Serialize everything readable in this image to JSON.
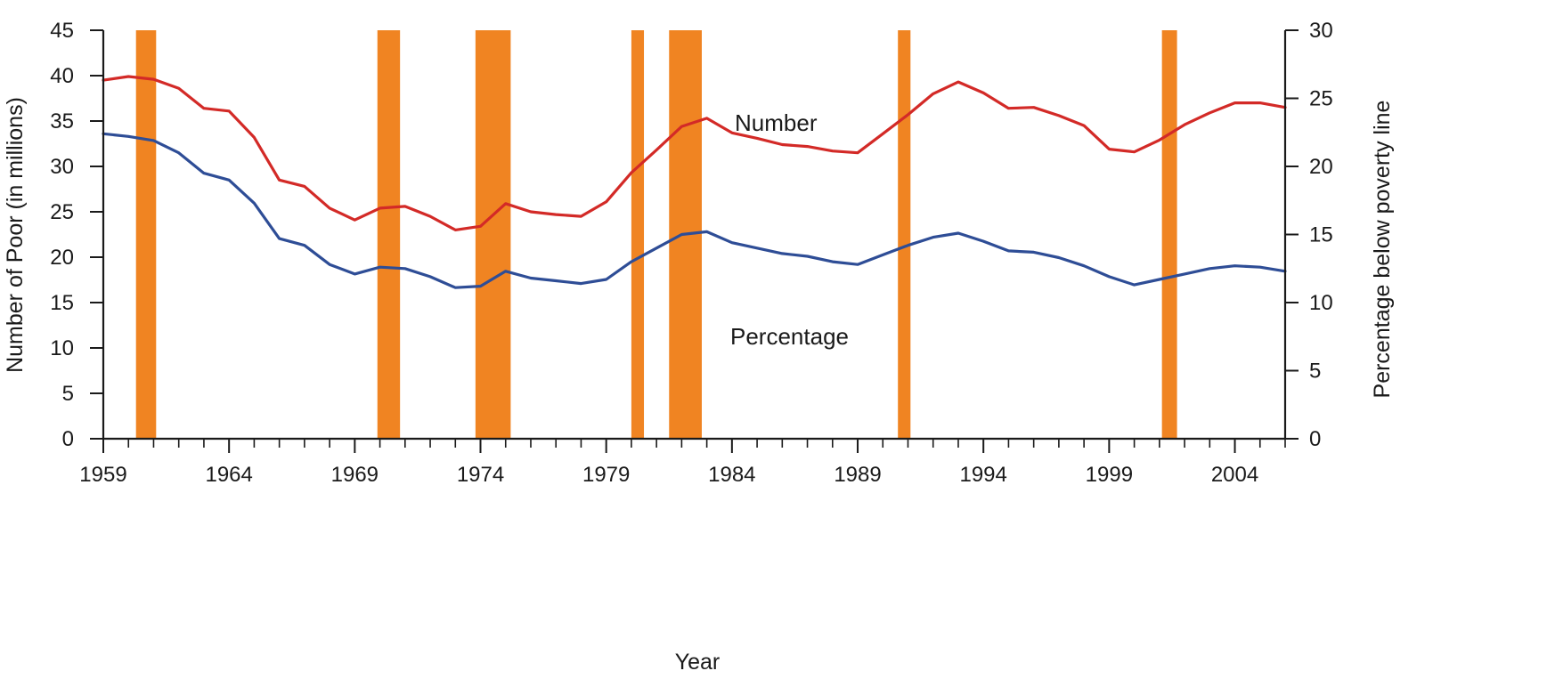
{
  "chart_data": {
    "type": "line",
    "xlabel": "Year",
    "ylabel_left": "Number of Poor (in millions)",
    "ylabel_right": "Percentage below poverty line",
    "xlim": [
      1959,
      2006
    ],
    "ylim_left": [
      0,
      45
    ],
    "ylim_right": [
      0,
      30
    ],
    "x_ticks": [
      1959,
      1964,
      1969,
      1974,
      1979,
      1984,
      1989,
      1994,
      1999,
      2004
    ],
    "y_ticks_left": [
      0,
      5,
      10,
      15,
      20,
      25,
      30,
      35,
      40,
      45
    ],
    "y_ticks_right": [
      0,
      5,
      10,
      15,
      20,
      25,
      30
    ],
    "grid": false,
    "recessions": [
      {
        "start": 1960.3,
        "end": 1961.1
      },
      {
        "start": 1969.9,
        "end": 1970.8
      },
      {
        "start": 1973.8,
        "end": 1975.2
      },
      {
        "start": 1980.0,
        "end": 1980.5
      },
      {
        "start": 1981.5,
        "end": 1982.8
      },
      {
        "start": 1990.6,
        "end": 1991.1
      },
      {
        "start": 2001.1,
        "end": 2001.7
      }
    ],
    "series": [
      {
        "name": "Number",
        "axis": "left",
        "color": "#d32a27",
        "x": [
          1959,
          1960,
          1961,
          1962,
          1963,
          1964,
          1965,
          1966,
          1967,
          1968,
          1969,
          1970,
          1971,
          1972,
          1973,
          1974,
          1975,
          1976,
          1977,
          1978,
          1979,
          1980,
          1981,
          1982,
          1983,
          1984,
          1985,
          1986,
          1987,
          1988,
          1989,
          1990,
          1991,
          1992,
          1993,
          1994,
          1995,
          1996,
          1997,
          1998,
          1999,
          2000,
          2001,
          2002,
          2003,
          2004,
          2005,
          2006
        ],
        "values": [
          39.5,
          39.9,
          39.6,
          38.6,
          36.4,
          36.1,
          33.2,
          28.5,
          27.8,
          25.4,
          24.1,
          25.4,
          25.6,
          24.5,
          23.0,
          23.4,
          25.9,
          25.0,
          24.7,
          24.5,
          26.1,
          29.3,
          31.8,
          34.4,
          35.3,
          33.7,
          33.1,
          32.4,
          32.2,
          31.7,
          31.5,
          33.6,
          35.7,
          38.0,
          39.3,
          38.1,
          36.4,
          36.5,
          35.6,
          34.5,
          31.9,
          31.6,
          32.9,
          34.6,
          35.9,
          37.0,
          37.0,
          36.5
        ]
      },
      {
        "name": "Percentage",
        "axis": "right",
        "color": "#2e4d96",
        "x": [
          1959,
          1960,
          1961,
          1962,
          1963,
          1964,
          1965,
          1966,
          1967,
          1968,
          1969,
          1970,
          1971,
          1972,
          1973,
          1974,
          1975,
          1976,
          1977,
          1978,
          1979,
          1980,
          1981,
          1982,
          1983,
          1984,
          1985,
          1986,
          1987,
          1988,
          1989,
          1990,
          1991,
          1992,
          1993,
          1994,
          1995,
          1996,
          1997,
          1998,
          1999,
          2000,
          2001,
          2002,
          2003,
          2004,
          2005,
          2006
        ],
        "values": [
          22.4,
          22.2,
          21.9,
          21.0,
          19.5,
          19.0,
          17.3,
          14.7,
          14.2,
          12.8,
          12.1,
          12.6,
          12.5,
          11.9,
          11.1,
          11.2,
          12.3,
          11.8,
          11.6,
          11.4,
          11.7,
          13.0,
          14.0,
          15.0,
          15.2,
          14.4,
          14.0,
          13.6,
          13.4,
          13.0,
          12.8,
          13.5,
          14.2,
          14.8,
          15.1,
          14.5,
          13.8,
          13.7,
          13.3,
          12.7,
          11.9,
          11.3,
          11.7,
          12.1,
          12.5,
          12.7,
          12.6,
          12.3
        ]
      }
    ]
  }
}
